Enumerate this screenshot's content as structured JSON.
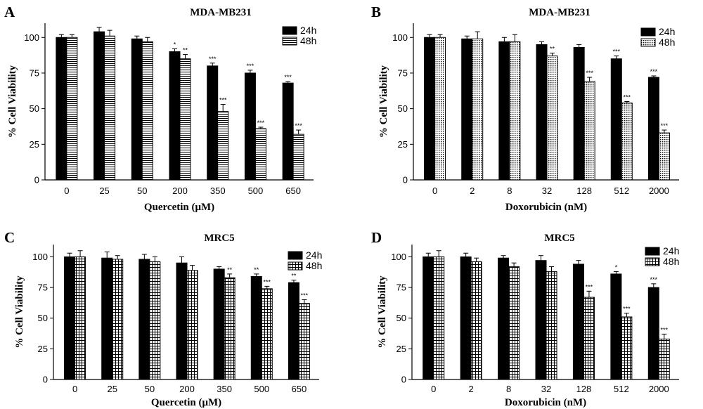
{
  "chart_data": [
    {
      "panel": "A",
      "type": "bar",
      "title": "MDA-MB231",
      "xlabel": "Quercetin (μM)",
      "ylabel": "% Cell Viability",
      "ylim": [
        0,
        110
      ],
      "yticks": [
        0,
        25,
        50,
        75,
        100
      ],
      "legend_position": "top-right",
      "categories": [
        "0",
        "25",
        "50",
        "200",
        "350",
        "500",
        "650"
      ],
      "series": [
        {
          "name": "24h",
          "pattern": "solid",
          "values": [
            100,
            104,
            99,
            90,
            80,
            75,
            68
          ],
          "errors": [
            2,
            3,
            2,
            2,
            2,
            2,
            1
          ],
          "significance": [
            "",
            "",
            "",
            "*",
            "***",
            "***",
            "***"
          ]
        },
        {
          "name": "48h",
          "pattern": "hstripe",
          "values": [
            100,
            101,
            97,
            85,
            48,
            36,
            32
          ],
          "errors": [
            2,
            4,
            3,
            3,
            5,
            1,
            3
          ],
          "significance": [
            "",
            "",
            "",
            "**",
            "***",
            "***",
            "***"
          ]
        }
      ]
    },
    {
      "panel": "B",
      "type": "bar",
      "title": "MDA-MB231",
      "xlabel": "Doxorubicin (nM)",
      "ylabel": "% Cell Viability",
      "ylim": [
        0,
        110
      ],
      "yticks": [
        0,
        25,
        50,
        75,
        100
      ],
      "legend_position": "top-right",
      "categories": [
        "0",
        "2",
        "8",
        "32",
        "128",
        "512",
        "2000"
      ],
      "series": [
        {
          "name": "24h",
          "pattern": "solid",
          "values": [
            100,
            99,
            97,
            95,
            93,
            85,
            72
          ],
          "errors": [
            2,
            2,
            3,
            2,
            2,
            2,
            1
          ],
          "significance": [
            "",
            "",
            "",
            "",
            "",
            "***",
            "***"
          ]
        },
        {
          "name": "48h",
          "pattern": "dots",
          "values": [
            100,
            99,
            97,
            87,
            69,
            54,
            33
          ],
          "errors": [
            2,
            5,
            5,
            2,
            3,
            1,
            2
          ],
          "significance": [
            "",
            "",
            "",
            "**",
            "***",
            "***",
            "***"
          ]
        }
      ]
    },
    {
      "panel": "C",
      "type": "bar",
      "title": "MRC5",
      "xlabel": "Quercetin (μM)",
      "ylabel": "% Cell Viability",
      "ylim": [
        0,
        110
      ],
      "yticks": [
        0,
        25,
        50,
        75,
        100
      ],
      "legend_position": "top-right",
      "categories": [
        "0",
        "25",
        "50",
        "200",
        "350",
        "500",
        "650"
      ],
      "series": [
        {
          "name": "24h",
          "pattern": "solid",
          "values": [
            100,
            99,
            98,
            95,
            90,
            84,
            79
          ],
          "errors": [
            3,
            5,
            4,
            5,
            2,
            2,
            2
          ],
          "significance": [
            "",
            "",
            "",
            "",
            "",
            "**",
            "**"
          ]
        },
        {
          "name": "48h",
          "pattern": "grid",
          "values": [
            100,
            98,
            96,
            89,
            83,
            74,
            62
          ],
          "errors": [
            5,
            3,
            4,
            4,
            3,
            2,
            3
          ],
          "significance": [
            "",
            "",
            "",
            "",
            "**",
            "***",
            "***"
          ]
        }
      ]
    },
    {
      "panel": "D",
      "type": "bar",
      "title": "MRC5",
      "xlabel": "Doxorubicin (nM)",
      "ylabel": "% Cell Viability",
      "ylim": [
        0,
        110
      ],
      "yticks": [
        0,
        25,
        50,
        75,
        100
      ],
      "legend_position": "top-right",
      "categories": [
        "0",
        "2",
        "8",
        "32",
        "128",
        "512",
        "2000"
      ],
      "series": [
        {
          "name": "24h",
          "pattern": "solid",
          "values": [
            100,
            100,
            99,
            97,
            94,
            86,
            75
          ],
          "errors": [
            3,
            3,
            2,
            4,
            3,
            2,
            3
          ],
          "significance": [
            "",
            "",
            "",
            "",
            "",
            "*",
            "***"
          ]
        },
        {
          "name": "48h",
          "pattern": "grid",
          "values": [
            100,
            96,
            92,
            88,
            67,
            51,
            33
          ],
          "errors": [
            5,
            3,
            3,
            4,
            5,
            3,
            4
          ],
          "significance": [
            "",
            "",
            "",
            "",
            "***",
            "***",
            "***"
          ]
        }
      ]
    }
  ]
}
